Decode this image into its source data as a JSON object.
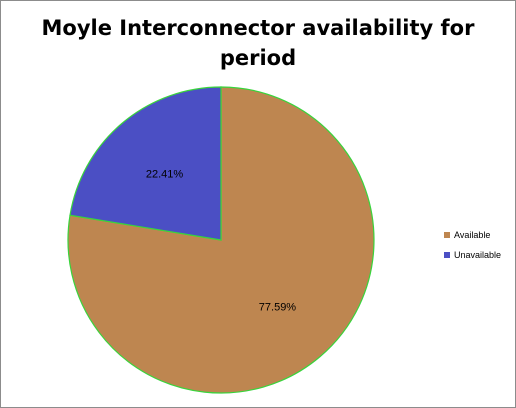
{
  "chart_data": {
    "type": "pie",
    "title_lines": [
      "Moyle Interconnector availability for",
      "period"
    ],
    "categories": [
      "Available",
      "Unavailable"
    ],
    "values": [
      77.59,
      22.41
    ],
    "data_labels": [
      "77.59%",
      "22.41%"
    ],
    "colors": [
      "#be8650",
      "#4b4fc4"
    ],
    "edge_color": "#39d43c",
    "legend_placement": "right"
  }
}
